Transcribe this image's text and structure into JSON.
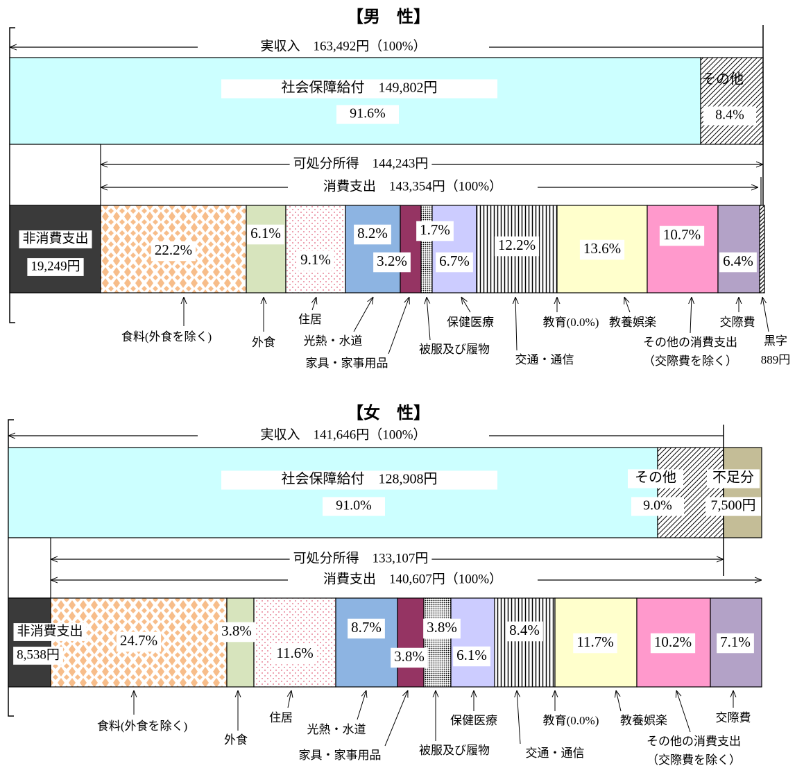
{
  "male": {
    "title": "【男　性】",
    "income": "実収入　163,492円（100%）",
    "benefit": "社会保障給付　149,802円",
    "benefit_pct": "91.6%",
    "other_label": "その他",
    "other_pct": "8.4%",
    "disposable": "可処分所得　144,243円",
    "consumption": "消費支出　143,354円（100%）",
    "segments": [
      [
        "非消費支出",
        "19,249円"
      ],
      [
        "22.2%"
      ],
      [
        "6.1%"
      ],
      [
        "9.1%"
      ],
      [
        "8.2%"
      ],
      [
        "3.2%"
      ],
      [
        "1.7%"
      ],
      [
        "6.7%"
      ],
      [
        "12.2%"
      ],
      [
        "13.6%"
      ],
      [
        "10.7%"
      ],
      [
        "6.4%"
      ]
    ],
    "callouts": [
      [
        "食料(外食を除く)"
      ],
      [
        "外食"
      ],
      [
        "住居"
      ],
      [
        "光熱・水道"
      ],
      [
        "家具・家事用品"
      ],
      [
        "被服及び履物"
      ],
      [
        "保健医療"
      ],
      [
        "交通・通信"
      ],
      [
        "教育(0.0%)"
      ],
      [
        "教養娯楽"
      ],
      [
        "その他の消費支出",
        "（交際費を除く）"
      ],
      [
        "交際費"
      ],
      [
        "黒字",
        "889円"
      ]
    ]
  },
  "female": {
    "title": "【女　性】",
    "income": "実収入　141,646円（100%）",
    "benefit": "社会保障給付　128,908円",
    "benefit_pct": "91.0%",
    "other_label": "その他",
    "other_pct": "9.0%",
    "shortfall_label": "不足分",
    "shortfall_value": "7,500円",
    "disposable": "可処分所得　133,107円",
    "consumption": "消費支出　140,607円（100%）",
    "segments": [
      [
        "非消費支出",
        "8,538円"
      ],
      [
        "24.7%"
      ],
      [
        "3.8%"
      ],
      [
        "11.6%"
      ],
      [
        "8.7%"
      ],
      [
        "3.8%"
      ],
      [
        "3.8%"
      ],
      [
        "6.1%"
      ],
      [
        "8.4%"
      ],
      [
        "11.7%"
      ],
      [
        "10.2%"
      ],
      [
        "7.1%"
      ]
    ],
    "callouts": [
      [
        "食料(外食を除く)"
      ],
      [
        "外食"
      ],
      [
        "住居"
      ],
      [
        "光熱・水道"
      ],
      [
        "家具・家事用品"
      ],
      [
        "被服及び履物"
      ],
      [
        "保健医療"
      ],
      [
        "交通・通信"
      ],
      [
        "教育(0.0%)"
      ],
      [
        "教養娯楽"
      ],
      [
        "その他の消費支出",
        "（交際費を除く）"
      ],
      [
        "交際費"
      ]
    ]
  }
}
